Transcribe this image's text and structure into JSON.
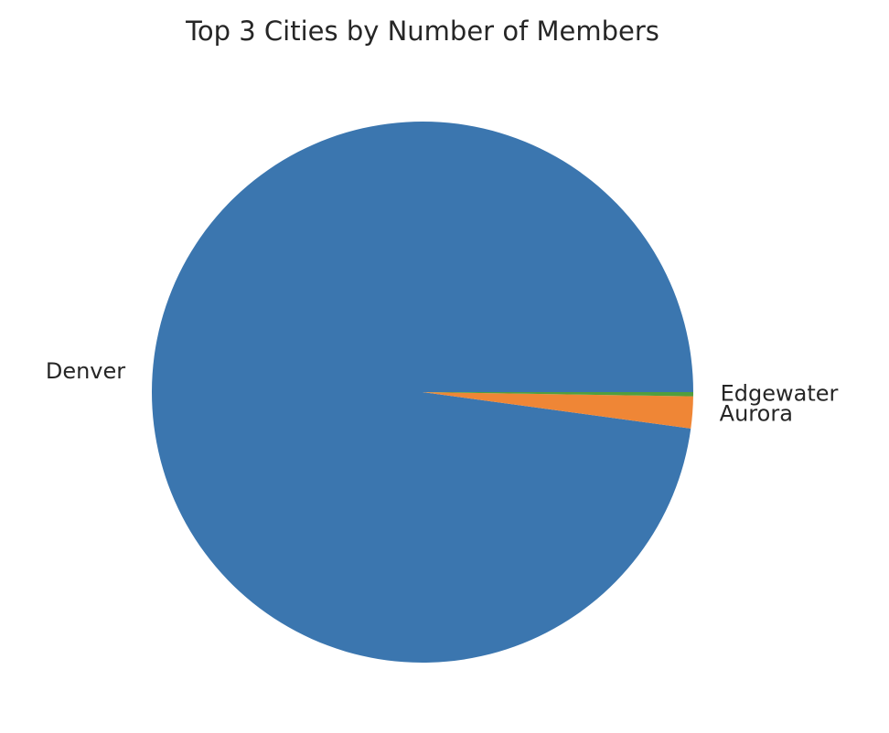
{
  "chart_data": {
    "type": "pie",
    "title": "Top 3 Cities by Number of Members",
    "slices": [
      {
        "label": "Denver",
        "value": 97.85,
        "color": "#3b76af"
      },
      {
        "label": "Aurora",
        "value": 1.9,
        "color": "#ef8636"
      },
      {
        "label": "Edgewater",
        "value": 0.25,
        "color": "#519e3e"
      }
    ],
    "start_angle_deg": 0,
    "direction": "counterclockwise"
  }
}
